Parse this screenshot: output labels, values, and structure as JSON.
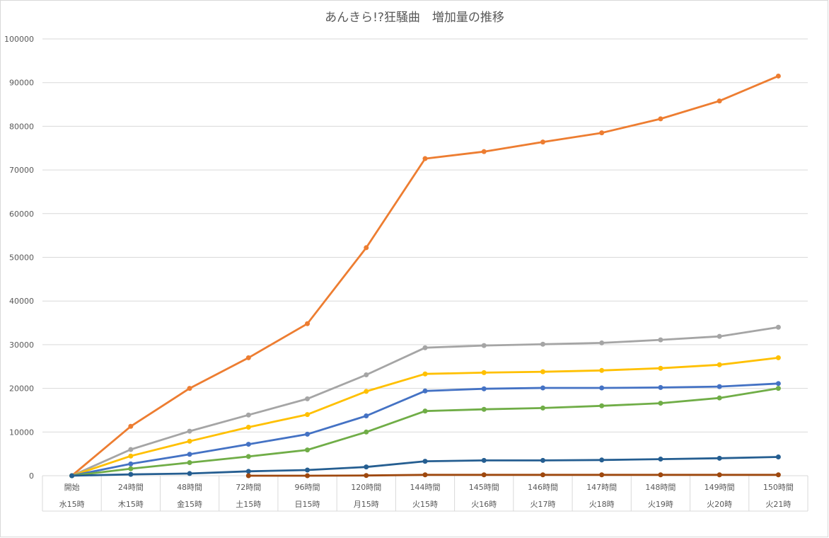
{
  "chart_data": {
    "type": "line",
    "title": "あんきら!?狂騒曲　増加量の推移",
    "xlabel": "",
    "ylabel": "",
    "ylim": [
      0,
      100000
    ],
    "yticks": [
      0,
      10000,
      20000,
      30000,
      40000,
      50000,
      60000,
      70000,
      80000,
      90000,
      100000
    ],
    "grid": true,
    "legend": "none",
    "categories": [
      [
        "開始",
        "水15時"
      ],
      [
        "24時間",
        "木15時"
      ],
      [
        "48時間",
        "金15時"
      ],
      [
        "72時間",
        "土15時"
      ],
      [
        "96時間",
        "日15時"
      ],
      [
        "120時間",
        "月15時"
      ],
      [
        "144時間",
        "火15時"
      ],
      [
        "145時間",
        "火16時"
      ],
      [
        "146時間",
        "火17時"
      ],
      [
        "147時間",
        "火18時"
      ],
      [
        "148時間",
        "火19時"
      ],
      [
        "149時間",
        "火20時"
      ],
      [
        "150時間",
        "火21時"
      ]
    ],
    "series": [
      {
        "color": "#ed7d31",
        "values": [
          0,
          11300,
          20000,
          27000,
          34800,
          52200,
          72600,
          74200,
          76400,
          78500,
          81700,
          85800,
          91500
        ]
      },
      {
        "color": "#a5a5a5",
        "values": [
          0,
          6000,
          10200,
          13900,
          17600,
          23100,
          29300,
          29800,
          30100,
          30400,
          31100,
          31900,
          34000
        ]
      },
      {
        "color": "#ffc000",
        "values": [
          0,
          4500,
          7900,
          11100,
          14000,
          19300,
          23300,
          23600,
          23800,
          24100,
          24600,
          25400,
          27000
        ]
      },
      {
        "color": "#4472c4",
        "values": [
          0,
          2700,
          4900,
          7200,
          9500,
          13700,
          19400,
          19900,
          20100,
          20100,
          20200,
          20400,
          21100
        ]
      },
      {
        "color": "#70ad47",
        "values": [
          0,
          1600,
          3000,
          4400,
          5900,
          10000,
          14800,
          15200,
          15500,
          16000,
          16600,
          17800,
          20000
        ]
      },
      {
        "color": "#255e91",
        "values": [
          0,
          300,
          500,
          1000,
          1300,
          2000,
          3300,
          3500,
          3500,
          3600,
          3800,
          4000,
          4300
        ]
      },
      {
        "color": "#9e480e",
        "values": [
          null,
          null,
          null,
          0,
          0,
          50,
          200,
          200,
          200,
          200,
          200,
          200,
          200
        ]
      }
    ]
  }
}
